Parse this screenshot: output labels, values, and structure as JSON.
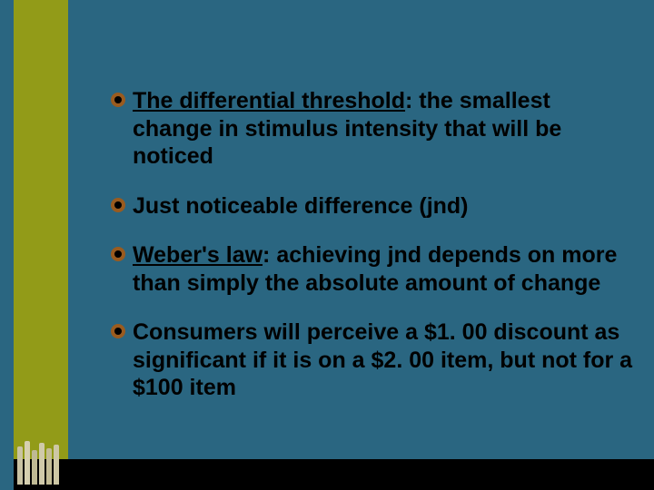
{
  "slide": {
    "background_color": "#2a6681",
    "left_stripe_color": "#929b18",
    "bottom_bar_color": "#000000",
    "bullet_outer_color": "#9a5b1f",
    "bullet_inner_color": "#000000",
    "text_color": "#000000",
    "font_size_pt": 19,
    "font_weight": 700,
    "bullets": [
      {
        "underlined_lead": "The differential threshold",
        "rest": ": the smallest change in stimulus intensity that will be noticed"
      },
      {
        "underlined_lead": "",
        "rest": "Just noticeable difference (jnd)"
      },
      {
        "underlined_lead": "Weber's law",
        "rest": ": achieving jnd depends on more than simply the absolute amount of change"
      },
      {
        "underlined_lead": "",
        "rest": "Consumers will perceive a $1. 00 discount as significant if it is on a $2. 00 item, but not for a $100 item"
      }
    ]
  }
}
